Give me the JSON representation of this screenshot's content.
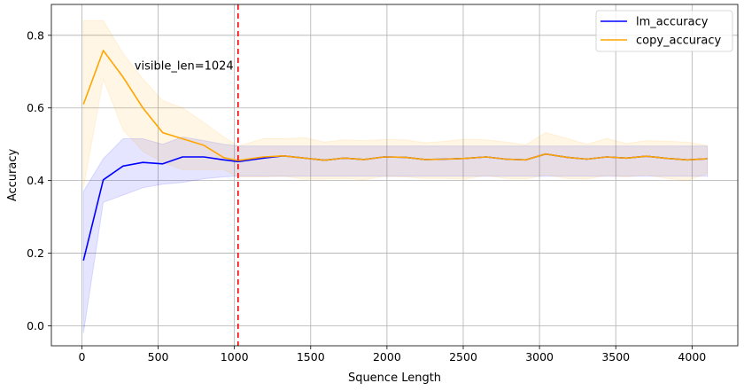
{
  "chart_data": {
    "type": "line",
    "title": "",
    "xlabel": "Squence Length",
    "ylabel": "Accuracy",
    "xlim": [
      -200,
      4300
    ],
    "ylim": [
      -0.055,
      0.885
    ],
    "xticks": [
      0,
      500,
      1000,
      1500,
      2000,
      2500,
      3000,
      3500,
      4000
    ],
    "yticks": [
      0.0,
      0.2,
      0.4,
      0.6,
      0.8
    ],
    "xtick_labels": [
      "0",
      "500",
      "1000",
      "1500",
      "2000",
      "2500",
      "3000",
      "3500",
      "4000"
    ],
    "ytick_labels": [
      "0.0",
      "0.2",
      "0.4",
      "0.6",
      "0.8"
    ],
    "grid": true,
    "legend_position": "top-right",
    "x": [
      10,
      140,
      270,
      400,
      530,
      660,
      800,
      930,
      1024,
      1190,
      1320,
      1460,
      1590,
      1720,
      1850,
      1980,
      2120,
      2250,
      2380,
      2510,
      2650,
      2780,
      2910,
      3040,
      3180,
      3310,
      3440,
      3570,
      3700,
      3840,
      3970,
      4100
    ],
    "series": [
      {
        "name": "lm_accuracy",
        "color": "#0000ff",
        "band_color": "#0000ff",
        "values": [
          0.18,
          0.402,
          0.44,
          0.45,
          0.446,
          0.465,
          0.465,
          0.457,
          0.452,
          0.462,
          0.468,
          0.462,
          0.456,
          0.462,
          0.458,
          0.465,
          0.464,
          0.458,
          0.459,
          0.461,
          0.465,
          0.459,
          0.457,
          0.473,
          0.464,
          0.459,
          0.465,
          0.462,
          0.467,
          0.461,
          0.457,
          0.46
        ],
        "lower": [
          -0.02,
          0.34,
          0.36,
          0.38,
          0.39,
          0.395,
          0.405,
          0.41,
          0.412,
          0.412,
          0.412,
          0.412,
          0.412,
          0.412,
          0.412,
          0.412,
          0.412,
          0.412,
          0.412,
          0.412,
          0.412,
          0.412,
          0.412,
          0.412,
          0.412,
          0.412,
          0.412,
          0.412,
          0.412,
          0.412,
          0.412,
          0.412
        ],
        "upper": [
          0.37,
          0.46,
          0.515,
          0.515,
          0.5,
          0.52,
          0.51,
          0.5,
          0.495,
          0.495,
          0.495,
          0.495,
          0.495,
          0.495,
          0.495,
          0.495,
          0.495,
          0.495,
          0.495,
          0.495,
          0.495,
          0.495,
          0.495,
          0.495,
          0.495,
          0.495,
          0.495,
          0.495,
          0.495,
          0.495,
          0.495,
          0.495
        ]
      },
      {
        "name": "copy_accuracy",
        "color": "#ffa500",
        "band_color": "#ffa500",
        "values": [
          0.61,
          0.758,
          0.685,
          0.6,
          0.532,
          0.515,
          0.497,
          0.463,
          0.455,
          0.465,
          0.468,
          0.462,
          0.456,
          0.462,
          0.458,
          0.465,
          0.464,
          0.458,
          0.459,
          0.461,
          0.465,
          0.459,
          0.457,
          0.473,
          0.464,
          0.459,
          0.465,
          0.462,
          0.467,
          0.461,
          0.457,
          0.46
        ],
        "lower": [
          0.38,
          0.68,
          0.54,
          0.48,
          0.45,
          0.43,
          0.43,
          0.43,
          0.41,
          0.41,
          0.412,
          0.404,
          0.404,
          0.406,
          0.402,
          0.412,
          0.41,
          0.406,
          0.406,
          0.404,
          0.414,
          0.406,
          0.404,
          0.416,
          0.406,
          0.404,
          0.414,
          0.41,
          0.416,
          0.406,
          0.4,
          0.42
        ],
        "upper": [
          0.84,
          0.84,
          0.75,
          0.68,
          0.62,
          0.6,
          0.56,
          0.52,
          0.495,
          0.515,
          0.515,
          0.518,
          0.506,
          0.512,
          0.51,
          0.513,
          0.512,
          0.504,
          0.508,
          0.514,
          0.512,
          0.506,
          0.498,
          0.532,
          0.516,
          0.5,
          0.516,
          0.502,
          0.51,
          0.508,
          0.506,
          0.496
        ]
      }
    ],
    "annotation": {
      "text": "visible_len=1024",
      "x": 1024,
      "line_color": "#ff0000",
      "line_style": "dashed"
    }
  }
}
